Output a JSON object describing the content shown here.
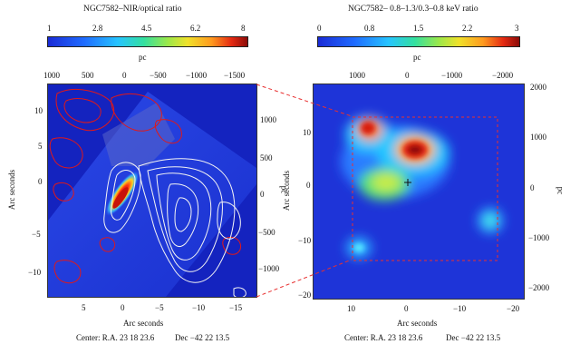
{
  "chart_data": [
    {
      "type": "heatmap",
      "title": "NGC7582–NIR/optical ratio",
      "colorbar": {
        "ticks": [
          "1",
          "2.8",
          "4.5",
          "6.2",
          "8"
        ],
        "range": [
          1,
          8
        ]
      },
      "top_axis": {
        "label": "pc",
        "ticks": [
          "1000",
          "500",
          "0",
          "−500",
          "−1000",
          "−1500"
        ]
      },
      "left_axis": {
        "label": "Arc seconds",
        "ticks": [
          "10",
          "5",
          "0",
          "−5",
          "−10"
        ]
      },
      "right_axis": {
        "label": "pc",
        "ticks": [
          "1000",
          "500",
          "0",
          "−500",
          "−1000"
        ]
      },
      "bottom_axis": {
        "label": "Arc seconds",
        "ticks": [
          "5",
          "0",
          "−5",
          "−10",
          "−15"
        ]
      },
      "footer": {
        "center": "Center: R.A. 23 18 23.6",
        "dec": "Dec −42 22 13.5"
      },
      "overlays": [
        "red contours (soft X-ray)",
        "white contours"
      ]
    },
    {
      "type": "heatmap",
      "title": "NGC7582– 0.8–1.3/0.3–0.8 keV ratio",
      "colorbar": {
        "ticks": [
          "0",
          "0.8",
          "1.5",
          "2.2",
          "3"
        ],
        "range": [
          0,
          3
        ]
      },
      "top_axis": {
        "label": "pc",
        "ticks": [
          "1000",
          "0",
          "−1000",
          "−2000"
        ]
      },
      "left_axis": {
        "label": "Arc seconds",
        "ticks": [
          "10",
          "0",
          "−10",
          "−20"
        ]
      },
      "right_axis": {
        "label": "pc",
        "ticks": [
          "2000",
          "1000",
          "0",
          "−1000",
          "−2000"
        ]
      },
      "bottom_axis": {
        "label": "Arc seconds",
        "ticks": [
          "10",
          "0",
          "−10",
          "−20"
        ]
      },
      "footer": {
        "center": "Center: R.A. 23 18 23.6",
        "dec": "Dec −42 22 13.5"
      },
      "overlays": [
        "dashed red box showing left-panel region",
        "center cross marker"
      ]
    }
  ]
}
